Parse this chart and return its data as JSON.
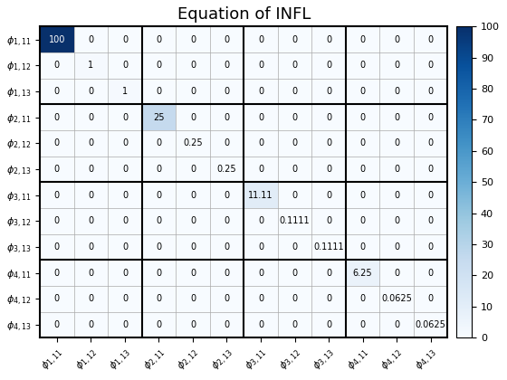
{
  "title": "Equation of INFL",
  "labels": [
    "$\\phi_{1,11}$",
    "$\\phi_{1,12}$",
    "$\\phi_{1,13}$",
    "$\\phi_{2,11}$",
    "$\\phi_{2,12}$",
    "$\\phi_{2,13}$",
    "$\\phi_{3,11}$",
    "$\\phi_{3,12}$",
    "$\\phi_{3,13}$",
    "$\\phi_{4,11}$",
    "$\\phi_{4,12}$",
    "$\\phi_{4,13}$"
  ],
  "matrix": [
    [
      100,
      0,
      0,
      0,
      0,
      0,
      0,
      0,
      0,
      0,
      0,
      0
    ],
    [
      0,
      1,
      0,
      0,
      0,
      0,
      0,
      0,
      0,
      0,
      0,
      0
    ],
    [
      0,
      0,
      1,
      0,
      0,
      0,
      0,
      0,
      0,
      0,
      0,
      0
    ],
    [
      0,
      0,
      0,
      25,
      0,
      0,
      0,
      0,
      0,
      0,
      0,
      0
    ],
    [
      0,
      0,
      0,
      0,
      0.25,
      0,
      0,
      0,
      0,
      0,
      0,
      0
    ],
    [
      0,
      0,
      0,
      0,
      0,
      0.25,
      0,
      0,
      0,
      0,
      0,
      0
    ],
    [
      0,
      0,
      0,
      0,
      0,
      0,
      11.11,
      0,
      0,
      0,
      0,
      0
    ],
    [
      0,
      0,
      0,
      0,
      0,
      0,
      0,
      0.1111,
      0,
      0,
      0,
      0
    ],
    [
      0,
      0,
      0,
      0,
      0,
      0,
      0,
      0,
      0.1111,
      0,
      0,
      0
    ],
    [
      0,
      0,
      0,
      0,
      0,
      0,
      0,
      0,
      0,
      6.25,
      0,
      0
    ],
    [
      0,
      0,
      0,
      0,
      0,
      0,
      0,
      0,
      0,
      0,
      0.0625,
      0
    ],
    [
      0,
      0,
      0,
      0,
      0,
      0,
      0,
      0,
      0,
      0,
      0,
      0.0625
    ]
  ],
  "cell_text": [
    [
      "100",
      "0",
      "0",
      "0",
      "0",
      "0",
      "0",
      "0",
      "0",
      "0",
      "0",
      "0"
    ],
    [
      "0",
      "1",
      "0",
      "0",
      "0",
      "0",
      "0",
      "0",
      "0",
      "0",
      "0",
      "0"
    ],
    [
      "0",
      "0",
      "1",
      "0",
      "0",
      "0",
      "0",
      "0",
      "0",
      "0",
      "0",
      "0"
    ],
    [
      "0",
      "0",
      "0",
      "25",
      "0",
      "0",
      "0",
      "0",
      "0",
      "0",
      "0",
      "0"
    ],
    [
      "0",
      "0",
      "0",
      "0",
      "0.25",
      "0",
      "0",
      "0",
      "0",
      "0",
      "0",
      "0"
    ],
    [
      "0",
      "0",
      "0",
      "0",
      "0",
      "0.25",
      "0",
      "0",
      "0",
      "0",
      "0",
      "0"
    ],
    [
      "0",
      "0",
      "0",
      "0",
      "0",
      "0",
      "11.11",
      "0",
      "0",
      "0",
      "0",
      "0"
    ],
    [
      "0",
      "0",
      "0",
      "0",
      "0",
      "0",
      "0",
      "0.1111",
      "0",
      "0",
      "0",
      "0"
    ],
    [
      "0",
      "0",
      "0",
      "0",
      "0",
      "0",
      "0",
      "0",
      "0.1111",
      "0",
      "0",
      "0"
    ],
    [
      "0",
      "0",
      "0",
      "0",
      "0",
      "0",
      "0",
      "0",
      "0",
      "6.25",
      "0",
      "0"
    ],
    [
      "0",
      "0",
      "0",
      "0",
      "0",
      "0",
      "0",
      "0",
      "0",
      "0",
      "0.0625",
      "0"
    ],
    [
      "0",
      "0",
      "0",
      "0",
      "0",
      "0",
      "0",
      "0",
      "0",
      "0",
      "0",
      "0.0625"
    ]
  ],
  "vmin": 0,
  "vmax": 100,
  "cmap": "Blues",
  "colorbar_ticks": [
    0,
    10,
    20,
    30,
    40,
    50,
    60,
    70,
    80,
    90,
    100
  ],
  "group_lines": [
    3,
    6,
    9
  ],
  "title_fontsize": 13,
  "label_fontsize": 8,
  "cell_fontsize": 7,
  "fig_width": 5.6,
  "fig_height": 4.2,
  "fig_dpi": 100
}
